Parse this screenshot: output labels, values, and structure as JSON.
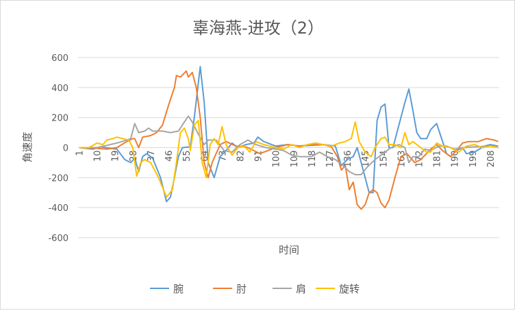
{
  "chart_data": {
    "type": "line",
    "title": "辜海燕-进攻（2）",
    "xlabel": "时间",
    "ylabel": "角速度",
    "ylim": [
      -600,
      600
    ],
    "yticks": [
      "600",
      "400",
      "200",
      "0",
      "-200",
      "-400",
      "-600"
    ],
    "ytick_values": [
      600,
      400,
      200,
      0,
      -200,
      -400,
      -600
    ],
    "x_count": 212,
    "xticks": [
      "1",
      "10",
      "19",
      "28",
      "37",
      "46",
      "55",
      "64",
      "73",
      "82",
      "91",
      "100",
      "109",
      "118",
      "127",
      "136",
      "145",
      "154",
      "163",
      "172",
      "181",
      "190",
      "199",
      "208"
    ],
    "grid": "horizontal",
    "legend_position": "bottom",
    "series": [
      {
        "name": "腕",
        "color": "#5B9BD5",
        "points": [
          [
            1,
            0
          ],
          [
            8,
            -10
          ],
          [
            12,
            5
          ],
          [
            17,
            -5
          ],
          [
            20,
            -10
          ],
          [
            24,
            -80
          ],
          [
            27,
            -100
          ],
          [
            29,
            -70
          ],
          [
            31,
            -160
          ],
          [
            33,
            -60
          ],
          [
            35,
            -40
          ],
          [
            38,
            -70
          ],
          [
            42,
            -200
          ],
          [
            45,
            -360
          ],
          [
            47,
            -330
          ],
          [
            49,
            -200
          ],
          [
            51,
            -60
          ],
          [
            53,
            0
          ],
          [
            57,
            5
          ],
          [
            59,
            200
          ],
          [
            62,
            540
          ],
          [
            64,
            300
          ],
          [
            66,
            -100
          ],
          [
            69,
            -200
          ],
          [
            72,
            -60
          ],
          [
            75,
            -20
          ],
          [
            78,
            30
          ],
          [
            81,
            0
          ],
          [
            85,
            20
          ],
          [
            89,
            30
          ],
          [
            91,
            70
          ],
          [
            94,
            40
          ],
          [
            100,
            10
          ],
          [
            106,
            20
          ],
          [
            112,
            10
          ],
          [
            118,
            15
          ],
          [
            124,
            20
          ],
          [
            130,
            10
          ],
          [
            133,
            -120
          ],
          [
            136,
            -80
          ],
          [
            139,
            -60
          ],
          [
            141,
            0
          ],
          [
            143,
            -100
          ],
          [
            147,
            -300
          ],
          [
            149,
            -300
          ],
          [
            151,
            180
          ],
          [
            153,
            270
          ],
          [
            155,
            290
          ],
          [
            157,
            0
          ],
          [
            159,
            0
          ],
          [
            162,
            150
          ],
          [
            165,
            300
          ],
          [
            167,
            390
          ],
          [
            169,
            250
          ],
          [
            171,
            100
          ],
          [
            173,
            60
          ],
          [
            176,
            60
          ],
          [
            178,
            120
          ],
          [
            181,
            160
          ],
          [
            183,
            80
          ],
          [
            186,
            -40
          ],
          [
            188,
            -60
          ],
          [
            191,
            -20
          ],
          [
            194,
            0
          ],
          [
            196,
            -40
          ],
          [
            200,
            -30
          ],
          [
            205,
            10
          ],
          [
            208,
            20
          ],
          [
            212,
            10
          ]
        ]
      },
      {
        "name": "肘",
        "color": "#ED7D31",
        "points": [
          [
            1,
            0
          ],
          [
            10,
            -5
          ],
          [
            15,
            -10
          ],
          [
            20,
            0
          ],
          [
            25,
            40
          ],
          [
            28,
            60
          ],
          [
            29,
            60
          ],
          [
            31,
            0
          ],
          [
            33,
            70
          ],
          [
            37,
            80
          ],
          [
            40,
            100
          ],
          [
            43,
            150
          ],
          [
            46,
            280
          ],
          [
            49,
            400
          ],
          [
            50,
            480
          ],
          [
            52,
            470
          ],
          [
            55,
            510
          ],
          [
            56,
            470
          ],
          [
            58,
            500
          ],
          [
            60,
            400
          ],
          [
            62,
            200
          ],
          [
            64,
            -100
          ],
          [
            66,
            -200
          ],
          [
            68,
            -100
          ],
          [
            72,
            20
          ],
          [
            75,
            40
          ],
          [
            80,
            10
          ],
          [
            85,
            5
          ],
          [
            89,
            -20
          ],
          [
            92,
            -40
          ],
          [
            96,
            -20
          ],
          [
            100,
            0
          ],
          [
            106,
            20
          ],
          [
            112,
            10
          ],
          [
            118,
            20
          ],
          [
            124,
            20
          ],
          [
            128,
            5
          ],
          [
            131,
            -60
          ],
          [
            133,
            -150
          ],
          [
            135,
            -120
          ],
          [
            137,
            -280
          ],
          [
            139,
            -230
          ],
          [
            141,
            -380
          ],
          [
            143,
            -410
          ],
          [
            145,
            -380
          ],
          [
            147,
            -300
          ],
          [
            149,
            -280
          ],
          [
            151,
            -300
          ],
          [
            153,
            -370
          ],
          [
            155,
            -400
          ],
          [
            157,
            -350
          ],
          [
            160,
            -200
          ],
          [
            163,
            -60
          ],
          [
            166,
            -40
          ],
          [
            170,
            -100
          ],
          [
            173,
            -80
          ],
          [
            178,
            -10
          ],
          [
            181,
            20
          ],
          [
            184,
            -20
          ],
          [
            188,
            -60
          ],
          [
            191,
            -20
          ],
          [
            194,
            30
          ],
          [
            197,
            40
          ],
          [
            202,
            40
          ],
          [
            206,
            60
          ],
          [
            210,
            50
          ],
          [
            212,
            40
          ]
        ]
      },
      {
        "name": "肩",
        "color": "#A5A5A5",
        "points": [
          [
            1,
            0
          ],
          [
            10,
            0
          ],
          [
            15,
            15
          ],
          [
            20,
            30
          ],
          [
            25,
            50
          ],
          [
            27,
            60
          ],
          [
            29,
            160
          ],
          [
            31,
            100
          ],
          [
            34,
            110
          ],
          [
            36,
            130
          ],
          [
            38,
            110
          ],
          [
            43,
            110
          ],
          [
            47,
            100
          ],
          [
            51,
            110
          ],
          [
            54,
            170
          ],
          [
            56,
            210
          ],
          [
            58,
            170
          ],
          [
            61,
            90
          ],
          [
            64,
            20
          ],
          [
            66,
            50
          ],
          [
            70,
            50
          ],
          [
            74,
            -20
          ],
          [
            78,
            -30
          ],
          [
            82,
            20
          ],
          [
            86,
            50
          ],
          [
            90,
            20
          ],
          [
            95,
            0
          ],
          [
            100,
            -10
          ],
          [
            104,
            -20
          ],
          [
            108,
            -50
          ],
          [
            112,
            -60
          ],
          [
            118,
            -60
          ],
          [
            122,
            -30
          ],
          [
            126,
            -60
          ],
          [
            130,
            -80
          ],
          [
            134,
            -120
          ],
          [
            137,
            -160
          ],
          [
            140,
            -180
          ],
          [
            143,
            -180
          ],
          [
            146,
            -130
          ],
          [
            150,
            -80
          ],
          [
            154,
            -40
          ],
          [
            158,
            0
          ],
          [
            162,
            20
          ],
          [
            165,
            0
          ],
          [
            167,
            -100
          ],
          [
            169,
            -60
          ],
          [
            172,
            -60
          ],
          [
            175,
            -10
          ],
          [
            178,
            -20
          ],
          [
            182,
            10
          ],
          [
            186,
            10
          ],
          [
            190,
            -10
          ],
          [
            195,
            0
          ],
          [
            200,
            5
          ],
          [
            208,
            10
          ],
          [
            212,
            5
          ]
        ]
      },
      {
        "name": "旋转",
        "color": "#FFC000",
        "points": [
          [
            1,
            0
          ],
          [
            6,
            0
          ],
          [
            10,
            30
          ],
          [
            13,
            20
          ],
          [
            15,
            50
          ],
          [
            18,
            60
          ],
          [
            20,
            70
          ],
          [
            23,
            60
          ],
          [
            26,
            50
          ],
          [
            28,
            0
          ],
          [
            30,
            -190
          ],
          [
            32,
            -100
          ],
          [
            34,
            -80
          ],
          [
            37,
            -100
          ],
          [
            41,
            -200
          ],
          [
            45,
            -330
          ],
          [
            48,
            -280
          ],
          [
            50,
            -100
          ],
          [
            52,
            100
          ],
          [
            54,
            130
          ],
          [
            56,
            60
          ],
          [
            57,
            -20
          ],
          [
            59,
            150
          ],
          [
            61,
            180
          ],
          [
            63,
            -100
          ],
          [
            65,
            -200
          ],
          [
            67,
            20
          ],
          [
            69,
            60
          ],
          [
            71,
            20
          ],
          [
            73,
            140
          ],
          [
            75,
            20
          ],
          [
            78,
            -50
          ],
          [
            81,
            0
          ],
          [
            84,
            10
          ],
          [
            87,
            -30
          ],
          [
            90,
            40
          ],
          [
            94,
            20
          ],
          [
            100,
            0
          ],
          [
            104,
            -10
          ],
          [
            108,
            20
          ],
          [
            112,
            0
          ],
          [
            116,
            20
          ],
          [
            120,
            30
          ],
          [
            124,
            20
          ],
          [
            128,
            10
          ],
          [
            132,
            30
          ],
          [
            135,
            40
          ],
          [
            138,
            60
          ],
          [
            140,
            170
          ],
          [
            142,
            40
          ],
          [
            145,
            -30
          ],
          [
            148,
            -60
          ],
          [
            150,
            0
          ],
          [
            153,
            60
          ],
          [
            155,
            70
          ],
          [
            157,
            20
          ],
          [
            160,
            20
          ],
          [
            163,
            0
          ],
          [
            165,
            100
          ],
          [
            167,
            20
          ],
          [
            169,
            40
          ],
          [
            172,
            10
          ],
          [
            176,
            -30
          ],
          [
            178,
            -30
          ],
          [
            181,
            30
          ],
          [
            184,
            10
          ],
          [
            188,
            0
          ],
          [
            192,
            -30
          ],
          [
            196,
            10
          ],
          [
            200,
            20
          ],
          [
            204,
            0
          ],
          [
            208,
            10
          ],
          [
            212,
            0
          ]
        ]
      }
    ]
  }
}
